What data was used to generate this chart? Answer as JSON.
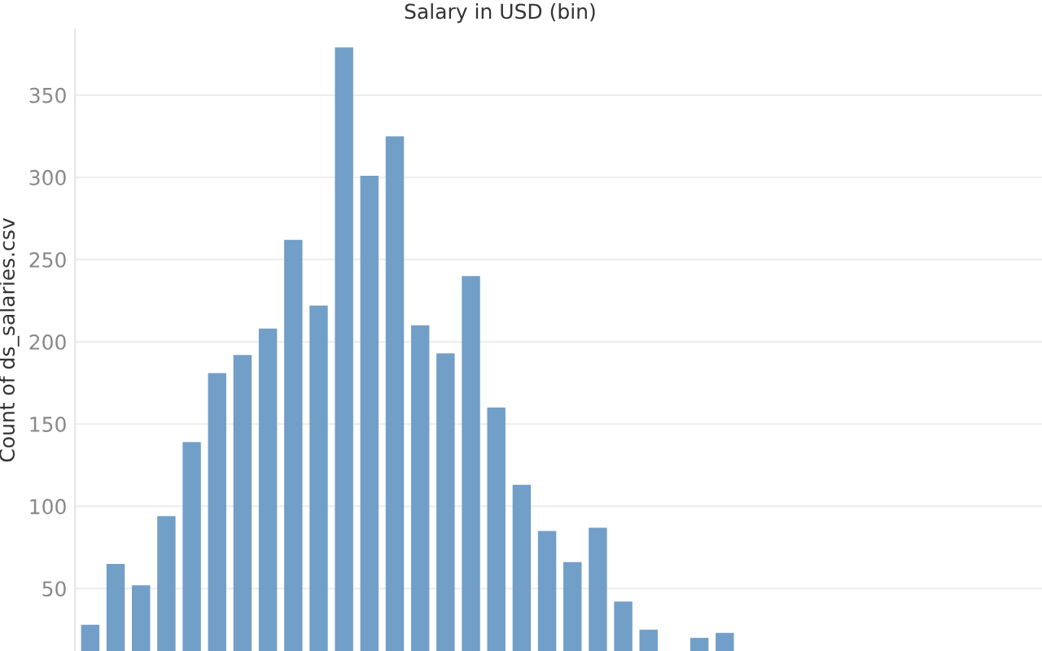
{
  "chart_data": {
    "type": "bar",
    "title": "Salary in USD (bin)",
    "ylabel": "Count of ds_salaries.csv",
    "categories": [
      null,
      null,
      null,
      null,
      null,
      null,
      null,
      null,
      null,
      null,
      null,
      null,
      null,
      null,
      null,
      null,
      null,
      null,
      null,
      null,
      null,
      null,
      null,
      null,
      null,
      null,
      null,
      null,
      null,
      null,
      null,
      null,
      null,
      null,
      null,
      null,
      null,
      null
    ],
    "values": [
      28,
      65,
      52,
      94,
      139,
      181,
      192,
      208,
      262,
      222,
      379,
      301,
      325,
      210,
      193,
      240,
      160,
      113,
      85,
      66,
      87,
      42,
      25,
      null,
      20,
      23,
      null,
      null,
      null,
      null,
      null,
      null,
      null,
      null,
      null,
      null,
      null,
      null
    ],
    "color": "#729fc8",
    "ylim": [
      12,
      390
    ],
    "yticks": [
      50,
      100,
      150,
      200,
      250,
      300,
      350
    ],
    "grid": "y"
  }
}
